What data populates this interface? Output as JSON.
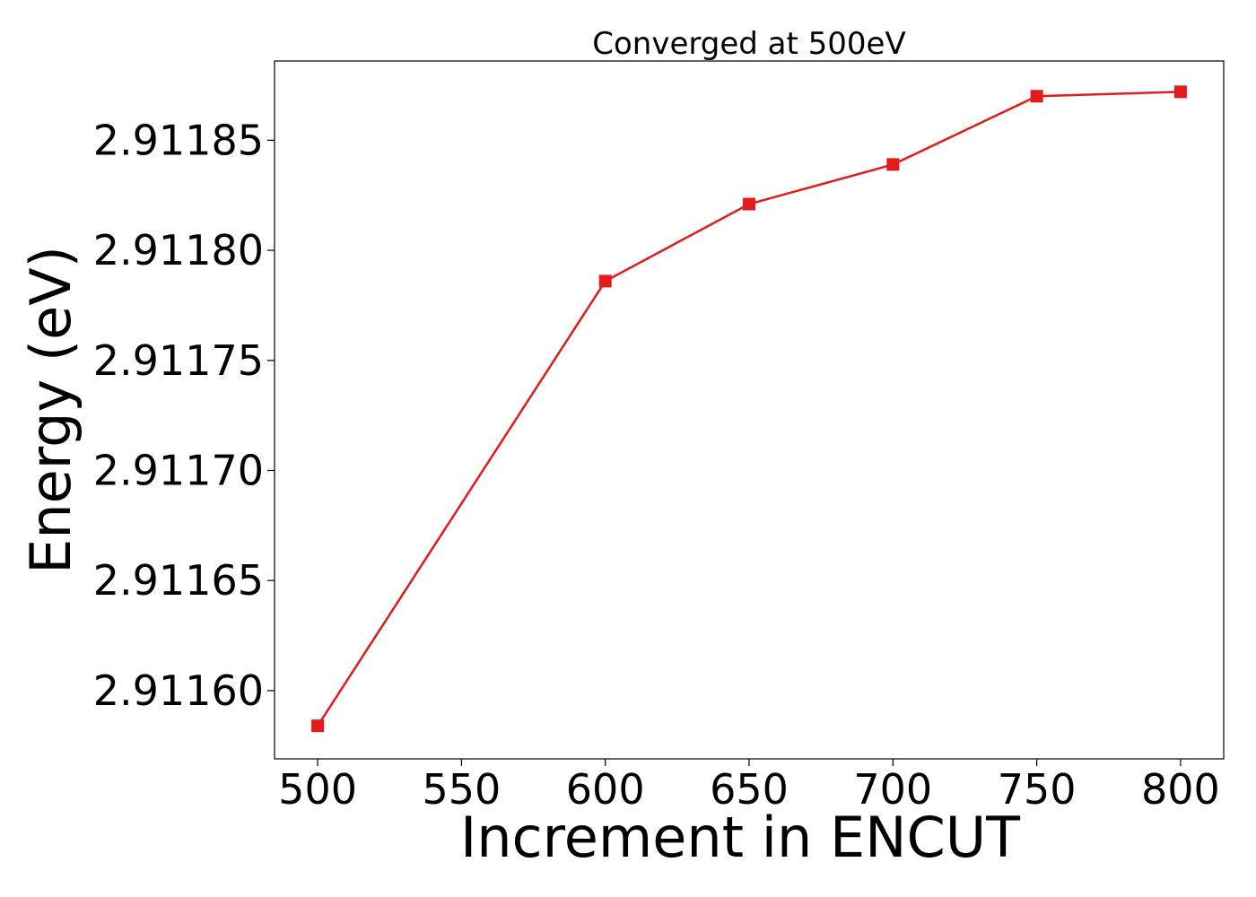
{
  "chart_data": {
    "type": "line",
    "title": "Converged at 500eV",
    "xlabel": "Increment in ENCUT",
    "ylabel": "Energy (eV)",
    "xlim": [
      485,
      815
    ],
    "ylim": [
      2.911569,
      2.911886
    ],
    "x_ticks": [
      500,
      550,
      600,
      650,
      700,
      750,
      800
    ],
    "x_tick_labels": [
      "500",
      "550",
      "600",
      "650",
      "700",
      "750",
      "800"
    ],
    "y_ticks": [
      2.9116,
      2.91165,
      2.9117,
      2.91175,
      2.9118,
      2.91185
    ],
    "y_tick_labels": [
      "2.91160",
      "2.91165",
      "2.91170",
      "2.91175",
      "2.91180",
      "2.91185"
    ],
    "grid": false,
    "series": [
      {
        "color": "#e41a1c",
        "marker": "square",
        "x": [
          500,
          600,
          650,
          700,
          750,
          800
        ],
        "y": [
          2.911584,
          2.911786,
          2.911821,
          2.911839,
          2.91187,
          2.911872
        ]
      }
    ]
  }
}
